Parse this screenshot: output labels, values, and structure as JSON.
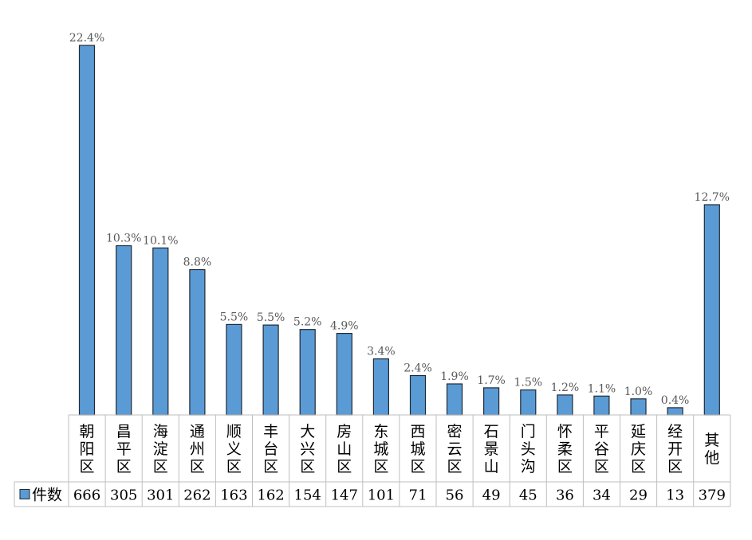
{
  "chart_data": {
    "type": "bar",
    "categories": [
      "朝阳区",
      "昌平区",
      "海淀区",
      "通州区",
      "顺义区",
      "丰台区",
      "大兴区",
      "房山区",
      "东城区",
      "西城区",
      "密云区",
      "石景山",
      "门头沟",
      "怀柔区",
      "平谷区",
      "延庆区",
      "经开区",
      "其他"
    ],
    "series": [
      {
        "name": "件数",
        "values": [
          666,
          305,
          301,
          262,
          163,
          162,
          154,
          147,
          101,
          71,
          56,
          49,
          45,
          36,
          34,
          29,
          13,
          379
        ]
      }
    ],
    "data_labels": [
      "22.4%",
      "10.3%",
      "10.1%",
      "8.8%",
      "5.5%",
      "5.5%",
      "5.2%",
      "4.9%",
      "3.4%",
      "2.4%",
      "1.9%",
      "1.7%",
      "1.5%",
      "1.2%",
      "1.1%",
      "1.0%",
      "0.4%",
      "12.7%"
    ],
    "title": "",
    "xlabel": "",
    "ylabel": "",
    "ylim": [
      0,
      666
    ],
    "grid": false,
    "legend": "in data table (bottom-left)",
    "data_table": true,
    "colors": {
      "bar_fill": "#5B9BD5",
      "bar_stroke": "#1F2A36",
      "label_text": "#595959",
      "table_line": "#BFBFBF",
      "text": "#000000"
    }
  }
}
